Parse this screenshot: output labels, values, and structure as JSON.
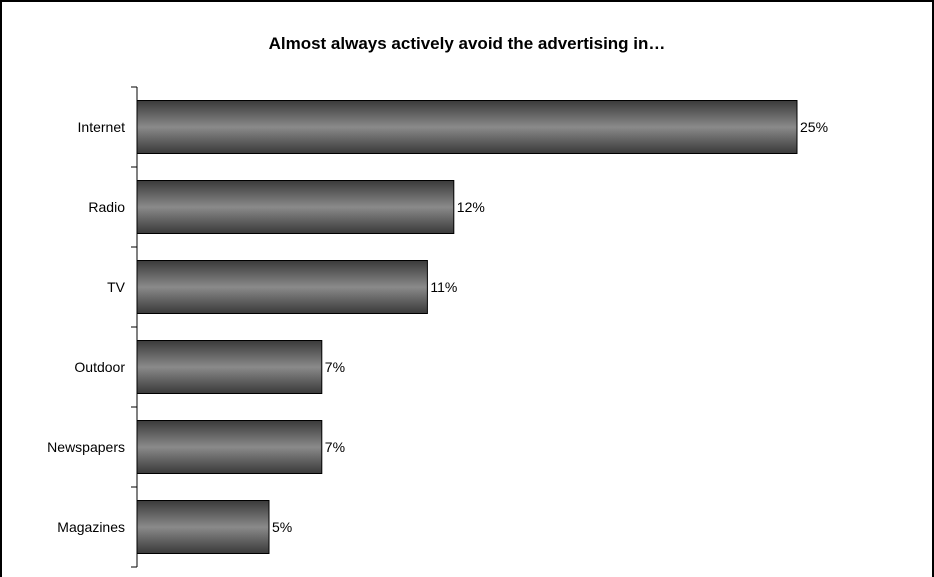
{
  "chart_data": {
    "type": "bar",
    "orientation": "horizontal",
    "title": "Almost always actively avoid the advertising in…",
    "categories": [
      "Internet",
      "Radio",
      "TV",
      "Outdoor",
      "Newspapers",
      "Magazines"
    ],
    "values": [
      25,
      12,
      11,
      7,
      7,
      5
    ],
    "value_labels": [
      "25%",
      "12%",
      "11%",
      "7%",
      "7%",
      "5%"
    ],
    "unit": "%",
    "xlim": [
      0,
      25
    ],
    "grid": false,
    "legend": "none",
    "colors": {
      "bar_dark": "#3a3a3a",
      "bar_light": "#8a8a8a",
      "axis": "#000000"
    }
  }
}
